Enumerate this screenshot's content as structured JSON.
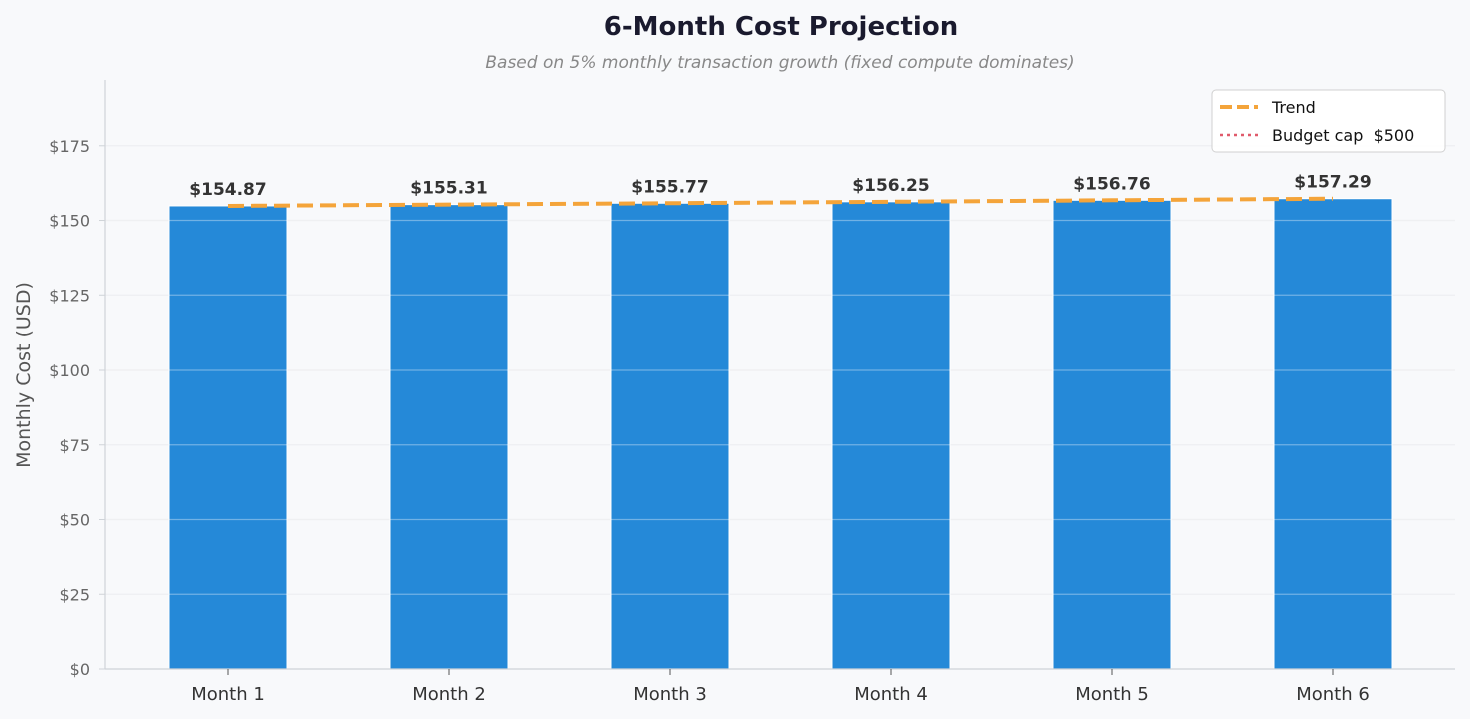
{
  "chart_data": {
    "type": "bar",
    "title": "6-Month Cost Projection",
    "subtitle": "Based on 5% monthly transaction growth (fixed compute dominates)",
    "xlabel": "",
    "ylabel": "Monthly Cost (USD)",
    "categories": [
      "Month 1",
      "Month 2",
      "Month 3",
      "Month 4",
      "Month 5",
      "Month 6"
    ],
    "values": [
      154.87,
      155.31,
      155.77,
      156.25,
      156.76,
      157.29
    ],
    "data_labels": [
      "$154.87",
      "$155.31",
      "$155.77",
      "$156.25",
      "$156.76",
      "$157.29"
    ],
    "ylim": [
      0,
      197
    ],
    "yticks": [
      0,
      25,
      50,
      75,
      100,
      125,
      150,
      175
    ],
    "ytick_labels": [
      "$0",
      "$25",
      "$50",
      "$75",
      "$100",
      "$125",
      "$150",
      "$175"
    ],
    "grid": true,
    "legend_position": "top-right",
    "legend": [
      {
        "label": "Trend",
        "style": "dashed",
        "color": "#f4a43a"
      },
      {
        "label": "Budget cap  $500",
        "style": "dotted",
        "color": "#e05a6b"
      }
    ],
    "trend_values": [
      154.87,
      155.31,
      155.77,
      156.25,
      156.76,
      157.29
    ],
    "colors": {
      "bar": "#2589d8",
      "trend": "#f4a43a",
      "budget": "#e05a6b",
      "grid": "#e6e8ec",
      "axis": "#cfd3d8"
    }
  }
}
